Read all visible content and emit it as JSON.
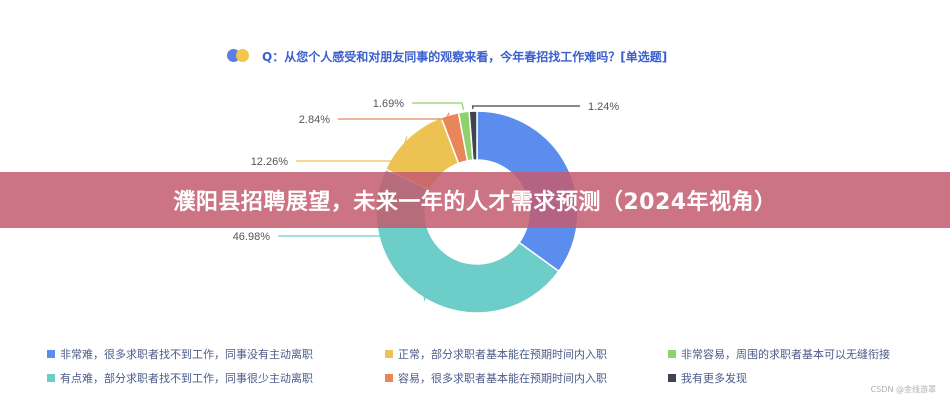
{
  "question": {
    "title": "Q：从您个人感受和对朋友同事的观察来看，今年春招找工作难吗？[单选题]",
    "dot_colors": [
      "#5b7fe0",
      "#f0c64c"
    ]
  },
  "chart_data": {
    "type": "pie",
    "variant": "donut",
    "start_angle_deg": 0,
    "slices": [
      {
        "label": "非常难，很多求职者找不到工作，同事没有主动离职",
        "value": 34.98,
        "color": "#5b8def",
        "data_label": ""
      },
      {
        "label": "有点难，部分求职者找不到工作，同事很少主动离职",
        "value": 46.98,
        "color": "#6dcdc8",
        "data_label": "46.98%"
      },
      {
        "label": "正常，部分求职者基本能在预期时间内入职",
        "value": 12.26,
        "color": "#ecc253",
        "data_label": "12.26%"
      },
      {
        "label": "容易，很多求职者基本能在预期时间内入职",
        "value": 2.84,
        "color": "#e8865a",
        "data_label": "2.84%"
      },
      {
        "label": "非常容易，周围的求职者基本可以无缝衔接",
        "value": 1.69,
        "color": "#8fd16a",
        "data_label": "1.69%"
      },
      {
        "label": "我有更多发现",
        "value": 1.24,
        "color": "#3f4550",
        "data_label": "1.24%"
      }
    ]
  },
  "legend": {
    "items": [
      {
        "label": "非常难，很多求职者找不到工作，同事没有主动离职",
        "color": "#5b8def"
      },
      {
        "label": "正常，部分求职者基本能在预期时间内入职",
        "color": "#ecc253"
      },
      {
        "label": "非常容易，周围的求职者基本可以无缝衔接",
        "color": "#8fd16a"
      },
      {
        "label": "有点难，部分求职者找不到工作，同事很少主动离职",
        "color": "#6dcdc8"
      },
      {
        "label": "容易，很多求职者基本能在预期时间内入职",
        "color": "#e8865a"
      },
      {
        "label": "我有更多发现",
        "color": "#3f4550"
      }
    ]
  },
  "banner": {
    "text": "濮阳县招聘展望，未来一年的人才需求预测（2024年视角）",
    "color": "#c45c70"
  },
  "watermark": "CSDN @金线游罩"
}
